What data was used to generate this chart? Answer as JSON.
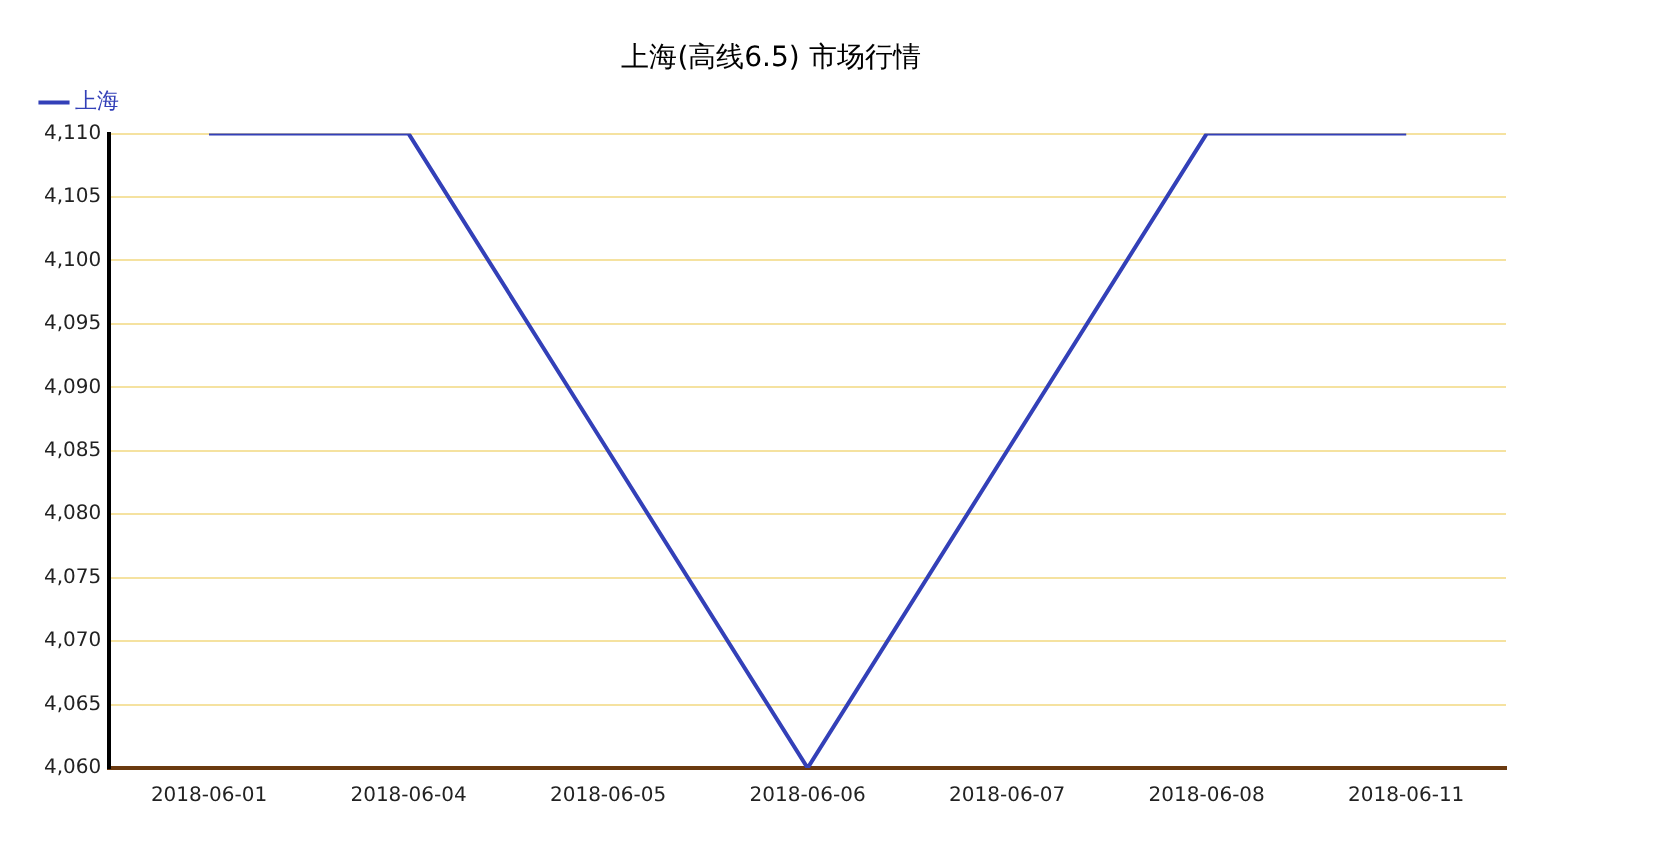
{
  "chart_data": {
    "type": "line",
    "title": "上海(高线6.5) 市场行情",
    "categories": [
      "2018-06-01",
      "2018-06-04",
      "2018-06-05",
      "2018-06-06",
      "2018-06-07",
      "2018-06-08",
      "2018-06-11"
    ],
    "series": [
      {
        "name": "上海",
        "color": "#3340b8",
        "values": [
          4110,
          4110,
          4085,
          4060,
          4085,
          4110,
          4110
        ]
      }
    ],
    "ylim": [
      4060,
      4110
    ],
    "yticks": [
      {
        "value": 4060,
        "label": "4,060"
      },
      {
        "value": 4065,
        "label": "4,065"
      },
      {
        "value": 4070,
        "label": "4,070"
      },
      {
        "value": 4075,
        "label": "4,075"
      },
      {
        "value": 4080,
        "label": "4,080"
      },
      {
        "value": 4085,
        "label": "4,085"
      },
      {
        "value": 4090,
        "label": "4,090"
      },
      {
        "value": 4095,
        "label": "4,095"
      },
      {
        "value": 4100,
        "label": "4,100"
      },
      {
        "value": 4105,
        "label": "4,105"
      },
      {
        "value": 4110,
        "label": "4,110"
      }
    ],
    "grid": "y",
    "legend": "top left",
    "marker": "none",
    "line_style": "solid"
  }
}
